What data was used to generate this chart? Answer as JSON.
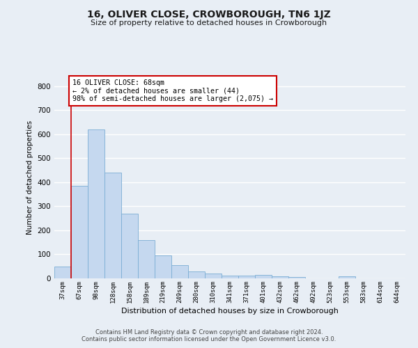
{
  "title": "16, OLIVER CLOSE, CROWBOROUGH, TN6 1JZ",
  "subtitle": "Size of property relative to detached houses in Crowborough",
  "xlabel": "Distribution of detached houses by size in Crowborough",
  "ylabel": "Number of detached properties",
  "categories": [
    "37sqm",
    "67sqm",
    "98sqm",
    "128sqm",
    "158sqm",
    "189sqm",
    "219sqm",
    "249sqm",
    "280sqm",
    "310sqm",
    "341sqm",
    "371sqm",
    "401sqm",
    "432sqm",
    "462sqm",
    "492sqm",
    "523sqm",
    "553sqm",
    "583sqm",
    "614sqm",
    "644sqm"
  ],
  "values": [
    50,
    385,
    620,
    440,
    268,
    158,
    95,
    55,
    30,
    20,
    12,
    13,
    15,
    8,
    5,
    0,
    0,
    8,
    0,
    0,
    0
  ],
  "bar_color": "#c5d8ef",
  "bar_edge_color": "#7aadd4",
  "vline_color": "#cc0000",
  "ylim": [
    0,
    840
  ],
  "yticks": [
    0,
    100,
    200,
    300,
    400,
    500,
    600,
    700,
    800
  ],
  "annotation_text": "16 OLIVER CLOSE: 68sqm\n← 2% of detached houses are smaller (44)\n98% of semi-detached houses are larger (2,075) →",
  "annotation_box_color": "#ffffff",
  "annotation_box_edge": "#cc0000",
  "footer_line1": "Contains HM Land Registry data © Crown copyright and database right 2024.",
  "footer_line2": "Contains public sector information licensed under the Open Government Licence v3.0.",
  "bg_color": "#e8eef5",
  "plot_bg_color": "#e8eef5"
}
